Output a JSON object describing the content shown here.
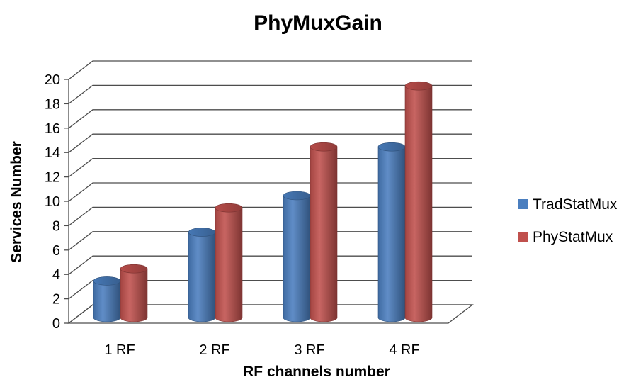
{
  "chart_data": {
    "type": "bar",
    "title": "PhyMuxGain",
    "xlabel": "RF channels number",
    "ylabel": "Services Number",
    "categories": [
      "1 RF",
      "2 RF",
      "3 RF",
      "4 RF"
    ],
    "series": [
      {
        "name": "TradStatMux",
        "values": [
          3,
          7,
          10,
          14
        ],
        "color": "#4a7ebf"
      },
      {
        "name": "PhyStatMux",
        "values": [
          4,
          9,
          14,
          19
        ],
        "color": "#c0504d"
      }
    ],
    "ylim": [
      0,
      20
    ],
    "yticks": [
      0,
      2,
      4,
      6,
      8,
      10,
      12,
      14,
      16,
      18,
      20
    ],
    "grid": true,
    "legend_position": "right",
    "style": "3d-cylinder"
  }
}
